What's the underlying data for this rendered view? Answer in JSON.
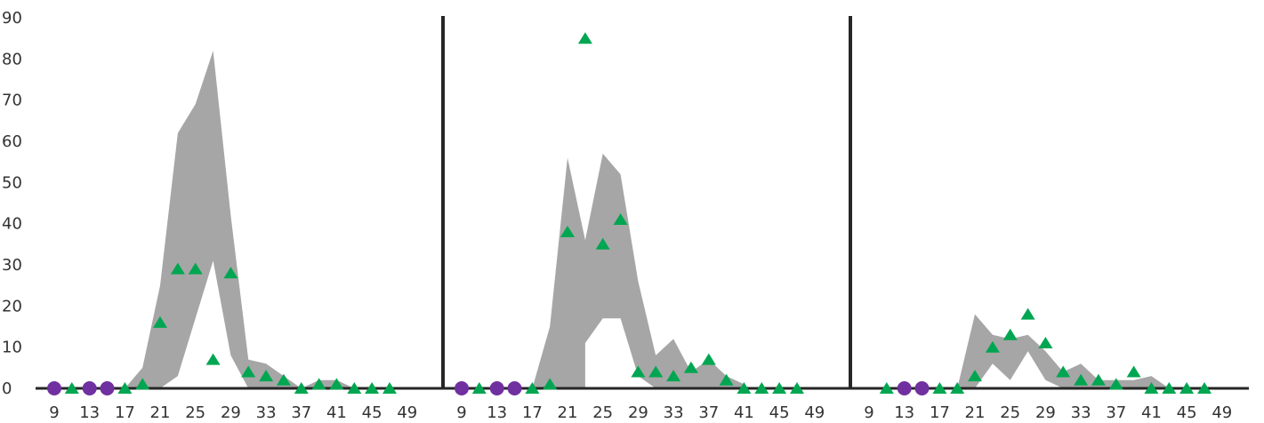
{
  "chart_data": {
    "type": "scatter",
    "ylim": [
      0,
      90
    ],
    "y_ticks": [
      "0",
      "10",
      "20",
      "30",
      "40",
      "50",
      "60",
      "70",
      "80",
      "90"
    ],
    "x_ticks": [
      "9",
      "13",
      "17",
      "21",
      "25",
      "29",
      "33",
      "37",
      "41",
      "45",
      "49"
    ],
    "xlim": [
      9,
      49
    ],
    "grid": false,
    "colors": {
      "band": "#A6A6A6",
      "triangle": "#00A651",
      "circle": "#7030A0",
      "axis": "#262626"
    },
    "panels": [
      {
        "band": {
          "x": [
            17,
            19,
            21,
            23,
            25,
            27,
            29,
            31,
            33,
            35,
            37,
            39,
            41,
            43
          ],
          "lower": [
            0,
            0,
            0,
            3,
            17,
            31,
            8,
            0,
            0,
            0,
            0,
            0,
            0,
            0
          ],
          "upper": [
            0,
            5,
            25,
            62,
            69,
            82,
            42,
            7,
            6,
            3,
            0,
            2,
            2,
            0
          ]
        },
        "circles": {
          "x": [
            9,
            13,
            15
          ],
          "y": [
            0,
            0,
            0
          ]
        },
        "triangles": {
          "x": [
            11,
            17,
            19,
            21,
            23,
            25,
            27,
            29,
            31,
            33,
            35,
            37,
            39,
            41,
            43,
            45,
            47
          ],
          "y": [
            0,
            0,
            1,
            16,
            29,
            29,
            7,
            28,
            4,
            3,
            2,
            0,
            1,
            1,
            0,
            0,
            0
          ]
        }
      },
      {
        "band": {
          "x": [
            17,
            19,
            21,
            23,
            23,
            25,
            27,
            29,
            31,
            33,
            35,
            37,
            39,
            41
          ],
          "lower": [
            0,
            0,
            0,
            0,
            11,
            17,
            17,
            3,
            0,
            0,
            0,
            0,
            0,
            0
          ],
          "upper": [
            0,
            15,
            56,
            36,
            36,
            57,
            52,
            26,
            8,
            12,
            4,
            7,
            3,
            1
          ]
        },
        "circles": {
          "x": [
            9,
            13,
            15
          ],
          "y": [
            0,
            0,
            0
          ]
        },
        "triangles": {
          "x": [
            11,
            17,
            19,
            21,
            23,
            25,
            27,
            29,
            31,
            33,
            35,
            37,
            39,
            41,
            43,
            45,
            47
          ],
          "y": [
            0,
            0,
            1,
            38,
            85,
            35,
            41,
            4,
            4,
            3,
            5,
            7,
            2,
            0,
            0,
            0,
            0
          ]
        }
      },
      {
        "band": {
          "x": [
            19,
            21,
            23,
            25,
            27,
            29,
            31,
            33,
            35,
            37,
            39,
            41,
            43
          ],
          "lower": [
            0,
            0,
            6,
            2,
            9,
            2,
            0,
            0,
            0,
            0,
            0,
            0,
            0
          ],
          "upper": [
            0,
            18,
            13,
            12,
            13,
            9,
            4,
            6,
            2,
            2,
            2,
            3,
            0
          ]
        },
        "circles": {
          "x": [
            13,
            15
          ],
          "y": [
            0,
            0
          ]
        },
        "triangles": {
          "x": [
            11,
            17,
            19,
            21,
            23,
            25,
            27,
            29,
            31,
            33,
            35,
            37,
            39,
            41,
            43,
            45,
            47
          ],
          "y": [
            0,
            0,
            0,
            3,
            10,
            13,
            18,
            11,
            4,
            2,
            2,
            1,
            4,
            0,
            0,
            0,
            0
          ]
        }
      }
    ]
  }
}
